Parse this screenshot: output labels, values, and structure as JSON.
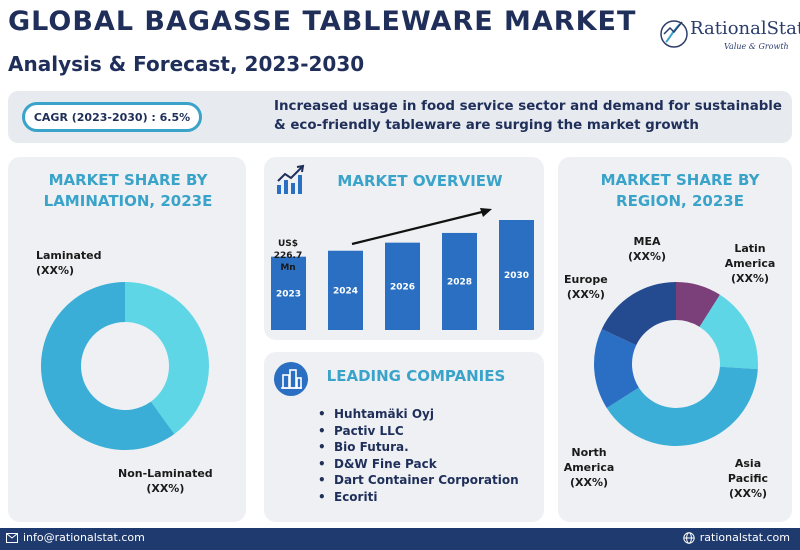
{
  "header": {
    "title": "GLOBAL BAGASSE TABLEWARE MARKET",
    "subtitle": "Analysis & Forecast, 2023-2030"
  },
  "logo": {
    "name": "RationalStat",
    "tagline": "Value & Growth"
  },
  "banner": {
    "cagr": "CAGR (2023-2030) : 6.5%",
    "text": "Increased usage in food service sector and demand for sustainable & eco-friendly tableware are surging the market growth"
  },
  "lamination_panel": {
    "title": "MARKET SHARE BY LAMINATION, 2023E"
  },
  "overview_panel": {
    "title": "MARKET OVERVIEW",
    "value_label": "US$ 226.7 Mn"
  },
  "region_panel": {
    "title": "MARKET SHARE BY REGION, 2023E"
  },
  "companies_panel": {
    "title": "LEADING COMPANIES",
    "items": [
      "Huhtamäki Oyj",
      "Pactiv LLC",
      "Bio Futura.",
      "D&W Fine Pack",
      "Dart Container Corporation",
      "Ecoriti"
    ]
  },
  "footer": {
    "email": "info@rationalstat.com",
    "website": "rationalstat.com"
  },
  "colors": {
    "navy": "#1f2f5a",
    "accent": "#3aa3c9",
    "bar": "#2a6fc2",
    "footer": "#1f3a6e"
  },
  "chart_data": [
    {
      "type": "pie",
      "title": "MARKET SHARE BY LAMINATION, 2023E",
      "donut": true,
      "slices": [
        {
          "label": "Laminated",
          "value_label": "(XX%)",
          "share": 40,
          "color": "#5fd6e6"
        },
        {
          "label": "Non-Laminated",
          "value_label": "(XX%)",
          "share": 60,
          "color": "#3aaed6"
        }
      ]
    },
    {
      "type": "bar",
      "title": "MARKET OVERVIEW",
      "categories": [
        "2023",
        "2024",
        "2026",
        "2028",
        "2030"
      ],
      "values": [
        226.7,
        245,
        270,
        300,
        340
      ],
      "value_labels": [
        "US$ 226.7 Mn",
        "",
        "",
        "",
        ""
      ],
      "trend_arrow": true,
      "ylim": [
        0,
        340
      ]
    },
    {
      "type": "pie",
      "title": "MARKET SHARE BY REGION, 2023E",
      "donut": true,
      "slices": [
        {
          "label": "MEA",
          "value_label": "(XX%)",
          "share": 9,
          "color": "#7b3f7a"
        },
        {
          "label": "Latin America",
          "value_label": "(XX%)",
          "share": 17,
          "color": "#5fd6e6"
        },
        {
          "label": "Asia Pacific",
          "value_label": "(XX%)",
          "share": 40,
          "color": "#3aaed6"
        },
        {
          "label": "North America",
          "value_label": "(XX%)",
          "share": 16,
          "color": "#2b6fc4"
        },
        {
          "label": "Europe",
          "value_label": "(XX%)",
          "share": 18,
          "color": "#244a8f"
        }
      ]
    }
  ]
}
